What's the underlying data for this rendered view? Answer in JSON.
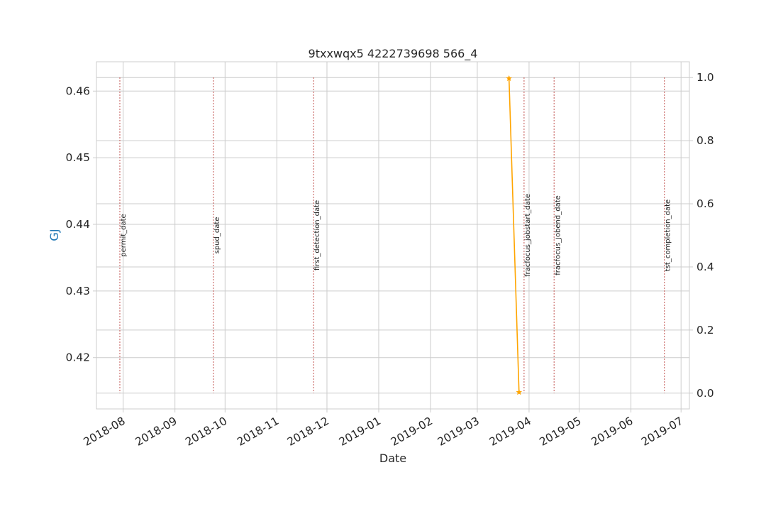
{
  "chart_data": {
    "type": "line",
    "title": "9txxwqx5 4222739698 566_4",
    "xlabel": "Date",
    "ylabel": "GJ",
    "ylabel_color": "#1f77b4",
    "x_axis": {
      "type": "date",
      "xlim": [
        "2018-07-16",
        "2019-07-06"
      ],
      "ticks": [
        "2018-08-01",
        "2018-09-01",
        "2018-10-01",
        "2018-11-01",
        "2018-12-01",
        "2019-01-01",
        "2019-02-01",
        "2019-03-01",
        "2019-04-01",
        "2019-05-01",
        "2019-06-01",
        "2019-07-01"
      ],
      "tick_labels": [
        "2018-08",
        "2018-09",
        "2018-10",
        "2018-11",
        "2018-12",
        "2019-01",
        "2019-02",
        "2019-03",
        "2019-04",
        "2019-05",
        "2019-06",
        "2019-07"
      ]
    },
    "y_left": {
      "ylim": [
        0.4123,
        0.4644
      ],
      "ticks": [
        0.42,
        0.43,
        0.44,
        0.45,
        0.46
      ],
      "tick_labels": [
        "0.42",
        "0.43",
        "0.44",
        "0.45",
        "0.46"
      ]
    },
    "y_right": {
      "ylim": [
        -0.05,
        1.05
      ],
      "ticks": [
        0.0,
        0.2,
        0.4,
        0.6,
        0.8,
        1.0
      ],
      "tick_labels": [
        "0.0",
        "0.2",
        "0.4",
        "0.6",
        "0.8",
        "1.0"
      ]
    },
    "grid": true,
    "series": [
      {
        "color": "#ffa500",
        "marker": "star",
        "x": [
          "2019-03-20",
          "2019-03-26"
        ],
        "y": [
          0.4619,
          0.4148
        ]
      }
    ],
    "event_lines": [
      {
        "date": "2018-07-30",
        "label": "permit_date"
      },
      {
        "date": "2018-09-24",
        "label": "spud_date"
      },
      {
        "date": "2018-11-23",
        "label": "first_detection_date"
      },
      {
        "date": "2019-03-29",
        "label": "fracfocus_jobstart_date"
      },
      {
        "date": "2019-04-16",
        "label": "fracfocus_jobend_date"
      },
      {
        "date": "2019-06-21",
        "label": "tst_completion_date"
      }
    ],
    "event_line_color": "#c0504d"
  }
}
